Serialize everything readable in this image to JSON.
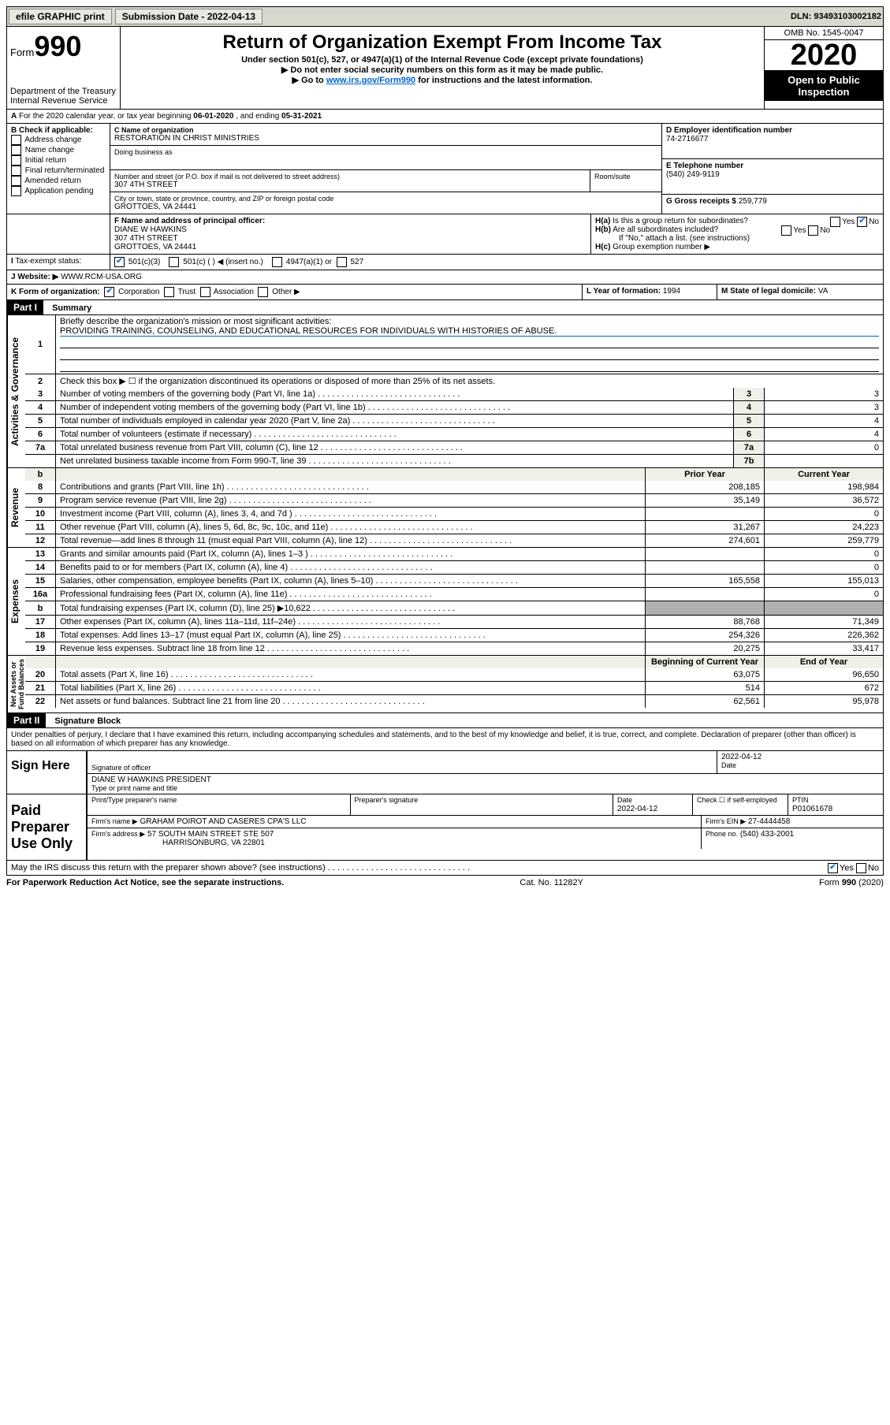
{
  "topbar": {
    "efile": "efile GRAPHIC print",
    "subdate_label": "Submission Date - 2022-04-13",
    "dln": "DLN: 93493103002182"
  },
  "header": {
    "form_label": "Form",
    "form_no": "990",
    "dept": "Department of the Treasury\nInternal Revenue Service",
    "title": "Return of Organization Exempt From Income Tax",
    "subtitle": "Under section 501(c), 527, or 4947(a)(1) of the Internal Revenue Code (except private foundations)",
    "note1": "Do not enter social security numbers on this form as it may be made public.",
    "note2_pre": "Go to ",
    "note2_link": "www.irs.gov/Form990",
    "note2_post": " for instructions and the latest information.",
    "omb": "OMB No. 1545-0047",
    "year": "2020",
    "open": "Open to Public Inspection"
  },
  "periodA": {
    "text_pre": "For the 2020 calendar year, or tax year beginning ",
    "begin": "06-01-2020",
    "mid": " , and ending ",
    "end": "05-31-2021"
  },
  "boxB": {
    "label": "B Check if applicable:",
    "opts": [
      "Address change",
      "Name change",
      "Initial return",
      "Final return/terminated",
      "Amended return",
      "Application pending"
    ]
  },
  "boxC": {
    "name_label": "C Name of organization",
    "name": "RESTORATION IN CHRIST MINISTRIES",
    "dba_label": "Doing business as",
    "addr_label": "Number and street (or P.O. box if mail is not delivered to street address)",
    "room_label": "Room/suite",
    "addr": "307 4TH STREET",
    "city_label": "City or town, state or province, country, and ZIP or foreign postal code",
    "city": "GROTTOES, VA  24441"
  },
  "boxD": {
    "label": "D Employer identification number",
    "value": "74-2716677"
  },
  "boxE": {
    "label": "E Telephone number",
    "value": "(540) 249-9119"
  },
  "boxG": {
    "label": "G Gross receipts $",
    "value": "259,779"
  },
  "boxF": {
    "label": "F  Name and address of principal officer:",
    "name": "DIANE W HAWKINS",
    "addr1": "307 4TH STREET",
    "addr2": "GROTTOES, VA  24441"
  },
  "boxH": {
    "a": "Is this a group return for subordinates?",
    "b": "Are all subordinates included?",
    "b_note": "If \"No,\" attach a list. (see instructions)",
    "c": "Group exemption number ▶"
  },
  "rowI": {
    "label": "Tax-exempt status:",
    "opts": [
      "501(c)(3)",
      "501(c) (   ) ◀ (insert no.)",
      "4947(a)(1) or",
      "527"
    ]
  },
  "rowJ": {
    "label": "Website: ▶",
    "value": "WWW.RCM-USA.ORG"
  },
  "rowK": {
    "label": "K Form of organization:",
    "opts": [
      "Corporation",
      "Trust",
      "Association",
      "Other ▶"
    ],
    "L_label": "L Year of formation:",
    "L_val": "1994",
    "M_label": "M State of legal domicile:",
    "M_val": "VA"
  },
  "part1": {
    "title": "Part I",
    "heading": "Summary",
    "q1_label": "Briefly describe the organization's mission or most significant activities:",
    "q1_text": "PROVIDING TRAINING, COUNSELING, AND EDUCATIONAL RESOURCES FOR INDIVIDUALS WITH HISTORIES OF ABUSE.",
    "q2": "Check this box ▶ ☐  if the organization discontinued its operations or disposed of more than 25% of its net assets.",
    "lines_gov": [
      {
        "n": "3",
        "t": "Number of voting members of the governing body (Part VI, line 1a)",
        "box": "3",
        "v": "3"
      },
      {
        "n": "4",
        "t": "Number of independent voting members of the governing body (Part VI, line 1b)",
        "box": "4",
        "v": "3"
      },
      {
        "n": "5",
        "t": "Total number of individuals employed in calendar year 2020 (Part V, line 2a)",
        "box": "5",
        "v": "4"
      },
      {
        "n": "6",
        "t": "Total number of volunteers (estimate if necessary)",
        "box": "6",
        "v": "4"
      },
      {
        "n": "7a",
        "t": "Total unrelated business revenue from Part VIII, column (C), line 12",
        "box": "7a",
        "v": "0"
      },
      {
        "n": "",
        "t": "Net unrelated business taxable income from Form 990-T, line 39",
        "box": "7b",
        "v": ""
      }
    ],
    "col_prior": "Prior Year",
    "col_current": "Current Year",
    "rev": [
      {
        "n": "8",
        "t": "Contributions and grants (Part VIII, line 1h)",
        "p": "208,185",
        "c": "198,984"
      },
      {
        "n": "9",
        "t": "Program service revenue (Part VIII, line 2g)",
        "p": "35,149",
        "c": "36,572"
      },
      {
        "n": "10",
        "t": "Investment income (Part VIII, column (A), lines 3, 4, and 7d )",
        "p": "",
        "c": "0"
      },
      {
        "n": "11",
        "t": "Other revenue (Part VIII, column (A), lines 5, 6d, 8c, 9c, 10c, and 11e)",
        "p": "31,267",
        "c": "24,223"
      },
      {
        "n": "12",
        "t": "Total revenue—add lines 8 through 11 (must equal Part VIII, column (A), line 12)",
        "p": "274,601",
        "c": "259,779"
      }
    ],
    "exp": [
      {
        "n": "13",
        "t": "Grants and similar amounts paid (Part IX, column (A), lines 1–3 )",
        "p": "",
        "c": "0"
      },
      {
        "n": "14",
        "t": "Benefits paid to or for members (Part IX, column (A), line 4)",
        "p": "",
        "c": "0"
      },
      {
        "n": "15",
        "t": "Salaries, other compensation, employee benefits (Part IX, column (A), lines 5–10)",
        "p": "165,558",
        "c": "155,013"
      },
      {
        "n": "16a",
        "t": "Professional fundraising fees (Part IX, column (A), line 11e)",
        "p": "",
        "c": "0"
      },
      {
        "n": "b",
        "t": "Total fundraising expenses (Part IX, column (D), line 25) ▶10,622",
        "p": "SHADE",
        "c": "SHADE"
      },
      {
        "n": "17",
        "t": "Other expenses (Part IX, column (A), lines 11a–11d, 11f–24e)",
        "p": "88,768",
        "c": "71,349"
      },
      {
        "n": "18",
        "t": "Total expenses. Add lines 13–17 (must equal Part IX, column (A), line 25)",
        "p": "254,326",
        "c": "226,362"
      },
      {
        "n": "19",
        "t": "Revenue less expenses. Subtract line 18 from line 12",
        "p": "20,275",
        "c": "33,417"
      }
    ],
    "col_begin": "Beginning of Current Year",
    "col_end": "End of Year",
    "net": [
      {
        "n": "20",
        "t": "Total assets (Part X, line 16)",
        "p": "63,075",
        "c": "96,650"
      },
      {
        "n": "21",
        "t": "Total liabilities (Part X, line 26)",
        "p": "514",
        "c": "672"
      },
      {
        "n": "22",
        "t": "Net assets or fund balances. Subtract line 21 from line 20",
        "p": "62,561",
        "c": "95,978"
      }
    ]
  },
  "part2": {
    "title": "Part II",
    "heading": "Signature Block",
    "penalties": "Under penalties of perjury, I declare that I have examined this return, including accompanying schedules and statements, and to the best of my knowledge and belief, it is true, correct, and complete. Declaration of preparer (other than officer) is based on all information of which preparer has any knowledge.",
    "sign_here": "Sign Here",
    "sig_officer": "Signature of officer",
    "sig_date_label": "Date",
    "sig_date": "2022-04-12",
    "officer_name": "DIANE W HAWKINS  PRESIDENT",
    "type_label": "Type or print name and title",
    "paid": "Paid Preparer Use Only",
    "prep_name_label": "Print/Type preparer's name",
    "prep_sig_label": "Preparer's signature",
    "prep_date_label": "Date",
    "prep_date": "2022-04-12",
    "check_self": "Check ☐ if self-employed",
    "ptin_label": "PTIN",
    "ptin": "P01061678",
    "firm_name_label": "Firm's name    ▶",
    "firm_name": "GRAHAM POIROT AND CASERES CPA'S LLC",
    "firm_ein_label": "Firm's EIN ▶",
    "firm_ein": "27-4444458",
    "firm_addr_label": "Firm's address ▶",
    "firm_addr1": "57 SOUTH MAIN STREET STE 507",
    "firm_addr2": "HARRISONBURG, VA  22801",
    "phone_label": "Phone no.",
    "phone": "(540) 433-2001",
    "discuss": "May the IRS discuss this return with the preparer shown above? (see instructions)"
  },
  "footer": {
    "left": "For Paperwork Reduction Act Notice, see the separate instructions.",
    "mid": "Cat. No. 11282Y",
    "right": "Form 990 (2020)"
  }
}
